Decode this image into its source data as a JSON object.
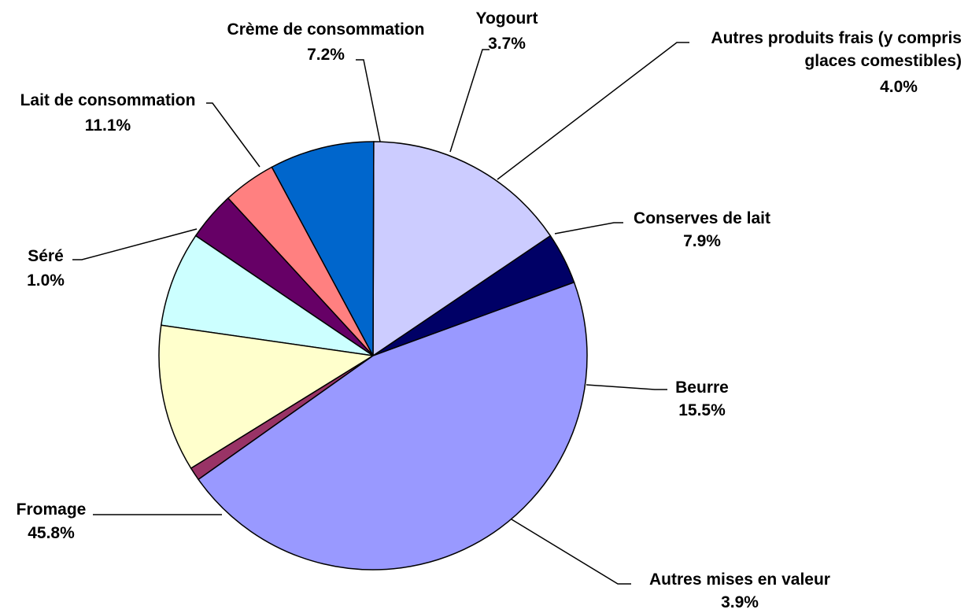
{
  "chart_data": {
    "type": "pie",
    "title": "",
    "start_angle_deg": -20.05,
    "direction": "counterclockwise",
    "slices": [
      {
        "label": "Autres mises en valeur",
        "value": 3.9,
        "value_text": "3.9%",
        "color": "#000066"
      },
      {
        "label": "Beurre",
        "value": 15.5,
        "value_text": "15.5%",
        "color": "#ccccff"
      },
      {
        "label": "Conserves de lait",
        "value": 7.9,
        "value_text": "7.9%",
        "color": "#0066cc"
      },
      {
        "label": "Autres produits frais (y compris glaces comestibles)",
        "value": 4.0,
        "value_text": "4.0%",
        "color": "#ff8080",
        "label_lines": [
          "Autres produits frais (y compris",
          "glaces comestibles)"
        ]
      },
      {
        "label": "Yogourt",
        "value": 3.7,
        "value_text": "3.7%",
        "color": "#660066"
      },
      {
        "label": "Crème de consommation",
        "value": 7.2,
        "value_text": "7.2%",
        "color": "#ccffff"
      },
      {
        "label": "Lait de consommation",
        "value": 11.1,
        "value_text": "11.1%",
        "color": "#ffffcc"
      },
      {
        "label": "Séré",
        "value": 1.0,
        "value_text": "1.0%",
        "color": "#993366"
      },
      {
        "label": "Fromage",
        "value": 45.8,
        "value_text": "45.8%",
        "color": "#9999ff"
      }
    ]
  }
}
